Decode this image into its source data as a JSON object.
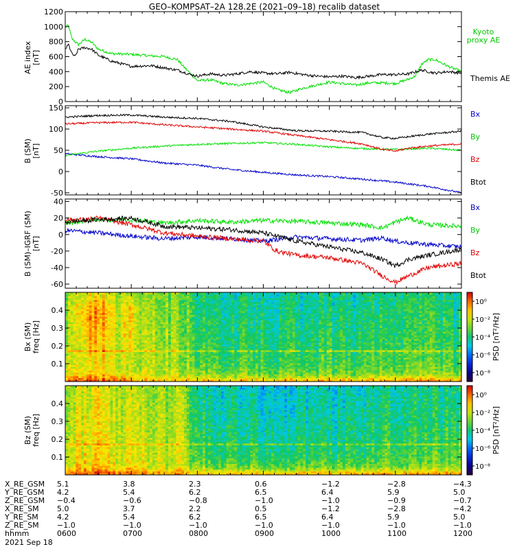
{
  "title": "GEO–KOMPSAT–2A 128.2E (2021–09–18) recalib dataset",
  "date_label": "2021 Sep 18",
  "colors": {
    "black": "#000000",
    "green": "#00e000",
    "red": "#e00000",
    "blue": "#0000cc",
    "legend_green": "#00c800"
  },
  "chart_data": [
    {
      "type": "line",
      "panel": "ae",
      "ylabel": "AE index [nT]",
      "ylim": [
        0,
        1200
      ],
      "yticks": [
        0,
        200,
        400,
        600,
        800,
        1000,
        1200
      ],
      "x_range": [
        6.0,
        12.0
      ],
      "series": [
        {
          "name": "Kyoto proxy AE",
          "color": "#00e000",
          "x": [
            6.0,
            6.05,
            6.1,
            6.2,
            6.3,
            6.4,
            6.5,
            6.7,
            7.0,
            7.3,
            7.5,
            7.7,
            7.8,
            7.9,
            8.0,
            8.2,
            8.4,
            8.6,
            8.8,
            9.0,
            9.2,
            9.4,
            9.6,
            9.8,
            10.0,
            10.2,
            10.4,
            10.6,
            10.8,
            11.0,
            11.1,
            11.2,
            11.3,
            11.4,
            11.5,
            11.6,
            11.8,
            12.0
          ],
          "values": [
            1000,
            1010,
            840,
            760,
            830,
            790,
            700,
            640,
            630,
            610,
            600,
            560,
            460,
            370,
            280,
            290,
            240,
            220,
            240,
            260,
            160,
            120,
            180,
            220,
            260,
            240,
            220,
            250,
            250,
            240,
            270,
            300,
            340,
            500,
            560,
            560,
            470,
            400
          ]
        },
        {
          "name": "Themis AE",
          "color": "#000000",
          "x": [
            6.0,
            6.05,
            6.1,
            6.15,
            6.2,
            6.3,
            6.4,
            6.5,
            6.7,
            7.0,
            7.3,
            7.5,
            7.7,
            7.9,
            8.0,
            8.2,
            8.4,
            8.6,
            8.8,
            9.0,
            9.2,
            9.4,
            9.6,
            9.8,
            10.0,
            10.2,
            10.4,
            10.6,
            10.8,
            11.0,
            11.2,
            11.4,
            11.6,
            11.8,
            12.0
          ],
          "values": [
            700,
            760,
            640,
            600,
            700,
            720,
            700,
            620,
            540,
            470,
            480,
            450,
            420,
            360,
            340,
            370,
            350,
            370,
            400,
            380,
            370,
            390,
            360,
            340,
            330,
            340,
            320,
            340,
            360,
            360,
            370,
            420,
            380,
            400,
            380
          ]
        }
      ]
    },
    {
      "type": "line",
      "panel": "b_sm",
      "ylabel": "B (SM) [nT]",
      "ylim": [
        -55,
        155
      ],
      "yticks": [
        -50,
        0,
        50,
        100,
        150
      ],
      "x_range": [
        6.0,
        12.0
      ],
      "series": [
        {
          "name": "Bx",
          "color": "#0000cc",
          "x": [
            6.0,
            6.5,
            7.0,
            7.5,
            8.0,
            8.5,
            9.0,
            9.5,
            10.0,
            10.5,
            11.0,
            11.5,
            12.0
          ],
          "values": [
            42,
            35,
            30,
            20,
            15,
            5,
            -2,
            -8,
            -12,
            -18,
            -25,
            -35,
            -50
          ]
        },
        {
          "name": "By",
          "color": "#00e000",
          "x": [
            6.0,
            6.5,
            7.0,
            7.5,
            8.0,
            8.5,
            9.0,
            9.5,
            10.0,
            10.5,
            11.0,
            11.5,
            12.0
          ],
          "values": [
            38,
            48,
            55,
            60,
            64,
            66,
            68,
            64,
            58,
            54,
            52,
            55,
            50
          ]
        },
        {
          "name": "Bz",
          "color": "#e00000",
          "x": [
            6.0,
            6.5,
            7.0,
            7.5,
            8.0,
            8.5,
            9.0,
            9.5,
            10.0,
            10.5,
            10.8,
            11.0,
            11.2,
            11.5,
            12.0
          ],
          "values": [
            112,
            115,
            116,
            110,
            105,
            100,
            95,
            85,
            75,
            65,
            52,
            48,
            55,
            60,
            65
          ]
        },
        {
          "name": "Btot",
          "color": "#000000",
          "x": [
            6.0,
            6.5,
            7.0,
            7.5,
            8.0,
            8.5,
            9.0,
            9.5,
            10.0,
            10.5,
            10.8,
            11.0,
            11.2,
            11.5,
            12.0
          ],
          "values": [
            128,
            132,
            133,
            128,
            125,
            118,
            105,
            96,
            95,
            92,
            80,
            78,
            82,
            88,
            95
          ]
        }
      ]
    },
    {
      "type": "line",
      "panel": "b_minus_igrf",
      "ylabel": "B (SM)–IGRF (SM) [nT]",
      "ylim": [
        -65,
        43
      ],
      "yticks": [
        -60,
        -40,
        -20,
        0,
        20,
        40
      ],
      "x_range": [
        6.0,
        12.0
      ],
      "series": [
        {
          "name": "Bx",
          "color": "#0000cc",
          "x": [
            6.0,
            6.5,
            7.0,
            7.5,
            8.0,
            8.5,
            9.0,
            9.5,
            10.0,
            10.5,
            10.8,
            11.0,
            11.2,
            11.5,
            12.0
          ],
          "values": [
            5,
            2,
            -2,
            -5,
            -3,
            -5,
            -8,
            -3,
            -5,
            -7,
            -4,
            -8,
            -10,
            -12,
            -15
          ]
        },
        {
          "name": "By",
          "color": "#00e000",
          "x": [
            6.0,
            6.5,
            7.0,
            7.5,
            8.0,
            8.5,
            9.0,
            9.5,
            10.0,
            10.5,
            10.8,
            11.0,
            11.2,
            11.5,
            12.0
          ],
          "values": [
            14,
            18,
            18,
            14,
            17,
            15,
            17,
            16,
            14,
            12,
            8,
            15,
            20,
            12,
            10
          ]
        },
        {
          "name": "Bz",
          "color": "#e00000",
          "x": [
            6.0,
            6.3,
            6.5,
            7.0,
            7.5,
            8.0,
            8.5,
            9.0,
            9.2,
            9.5,
            10.0,
            10.5,
            10.8,
            11.0,
            11.2,
            11.5,
            12.0
          ],
          "values": [
            18,
            18,
            20,
            12,
            2,
            -2,
            -5,
            -8,
            -20,
            -25,
            -28,
            -35,
            -50,
            -58,
            -50,
            -40,
            -35
          ]
        },
        {
          "name": "Btot",
          "color": "#000000",
          "x": [
            6.0,
            6.5,
            7.0,
            7.5,
            8.0,
            8.5,
            9.0,
            9.5,
            10.0,
            10.5,
            10.8,
            11.0,
            11.2,
            11.5,
            12.0
          ],
          "values": [
            15,
            18,
            20,
            10,
            8,
            6,
            2,
            -8,
            -15,
            -22,
            -30,
            -38,
            -30,
            -25,
            -18
          ]
        }
      ]
    },
    {
      "type": "heatmap",
      "panel": "bx_spectrogram",
      "ylabel": "Bx (SM) freq [Hz]",
      "ylim": [
        0.0,
        0.5
      ],
      "yticks": [
        0.1,
        0.2,
        0.3,
        0.4
      ],
      "colorbar_label": "PSD [nT²/Hz]",
      "colorbar_range_log10": [
        -9,
        1
      ],
      "colorbar_ticks_log10": [
        0,
        -2,
        -4,
        -6,
        -8
      ],
      "colorbar_ticks": [
        "10⁰",
        "10⁻²",
        "10⁻⁴",
        "10⁻⁶",
        "10⁻⁸"
      ],
      "times": [
        6.0,
        6.2,
        6.4,
        6.6,
        6.8,
        7.0,
        7.2,
        7.4,
        7.6,
        7.8,
        8.0,
        8.5,
        9.0,
        9.5,
        10.0,
        10.5,
        11.0,
        11.5,
        12.0
      ],
      "freqs": [
        0.01,
        0.03,
        0.05,
        0.1,
        0.15,
        0.2,
        0.3,
        0.4,
        0.49
      ],
      "log10_psd": [
        [
          0.0,
          0.2,
          0.2,
          0.0,
          0.0,
          -0.5,
          -1.0,
          -1.0,
          -1.0,
          -1.0,
          -1.0,
          -1.0,
          -1.0,
          -1.0,
          -1.0,
          -1.0,
          -0.5,
          -0.8,
          -1.0
        ],
        [
          -1.0,
          -0.8,
          -0.5,
          -0.8,
          -1.0,
          -1.2,
          -1.5,
          -1.8,
          -2.0,
          -2.0,
          -2.2,
          -2.5,
          -2.5,
          -2.5,
          -2.5,
          -2.5,
          -2.0,
          -2.2,
          -2.5
        ],
        [
          -1.8,
          -1.5,
          -1.0,
          -1.2,
          -1.5,
          -1.8,
          -2.0,
          -2.2,
          -2.2,
          -2.3,
          -2.6,
          -3.0,
          -3.0,
          -3.0,
          -3.0,
          -3.0,
          -2.5,
          -2.8,
          -3.0
        ],
        [
          -2.0,
          -1.8,
          -1.2,
          -1.5,
          -1.8,
          -2.0,
          -2.2,
          -2.4,
          -2.5,
          -2.6,
          -3.2,
          -3.5,
          -3.5,
          -3.5,
          -3.5,
          -3.5,
          -3.0,
          -3.2,
          -3.5
        ],
        [
          -2.2,
          -1.8,
          -1.0,
          -1.5,
          -1.8,
          -2.0,
          -2.2,
          -2.4,
          -2.5,
          -2.6,
          -3.3,
          -3.6,
          -3.6,
          -3.6,
          -3.6,
          -3.6,
          -3.1,
          -3.3,
          -3.6
        ],
        [
          -2.4,
          -1.8,
          -0.8,
          -1.3,
          -1.8,
          -1.5,
          -2.3,
          -2.5,
          -2.6,
          -2.7,
          -3.5,
          -3.8,
          -3.8,
          -3.8,
          -3.8,
          -3.8,
          -3.3,
          -3.5,
          -3.8
        ],
        [
          -2.5,
          -1.5,
          -0.5,
          -1.0,
          -2.0,
          -1.2,
          -2.4,
          -2.6,
          -2.7,
          -2.8,
          -3.6,
          -4.0,
          -4.0,
          -4.0,
          -4.0,
          -4.0,
          -3.5,
          -3.7,
          -4.0
        ],
        [
          -2.6,
          -1.2,
          -0.3,
          -0.6,
          -2.0,
          -1.0,
          -2.5,
          -2.7,
          -2.8,
          -2.9,
          -3.8,
          -4.2,
          -4.2,
          -4.2,
          -4.2,
          -4.2,
          -3.6,
          -3.8,
          -4.2
        ],
        [
          -2.7,
          -2.0,
          -1.5,
          -1.8,
          -2.2,
          -2.2,
          -2.6,
          -2.8,
          -2.9,
          -3.0,
          -4.0,
          -4.4,
          -4.4,
          -4.4,
          -4.4,
          -4.4,
          -3.8,
          -4.0,
          -4.4
        ]
      ],
      "spectral_line_hz": 0.17
    },
    {
      "type": "heatmap",
      "panel": "bz_spectrogram",
      "ylabel": "Bz (SM) freq [Hz]",
      "ylim": [
        0.0,
        0.5
      ],
      "yticks": [
        0.1,
        0.2,
        0.3,
        0.4
      ],
      "colorbar_label": "PSD [nT²/Hz]",
      "colorbar_range_log10": [
        -9,
        1
      ],
      "colorbar_ticks_log10": [
        0,
        -2,
        -4,
        -6,
        -8
      ],
      "colorbar_ticks": [
        "10⁰",
        "10⁻²",
        "10⁻⁴",
        "10⁻⁶",
        "10⁻⁸"
      ],
      "times": [
        6.0,
        6.2,
        6.4,
        6.6,
        6.8,
        7.0,
        7.2,
        7.4,
        7.6,
        7.8,
        8.0,
        8.5,
        9.0,
        9.5,
        10.0,
        10.5,
        11.0,
        11.5,
        12.0
      ],
      "freqs": [
        0.01,
        0.03,
        0.05,
        0.1,
        0.15,
        0.2,
        0.3,
        0.4,
        0.49
      ],
      "log10_psd": [
        [
          0.0,
          0.2,
          0.2,
          0.0,
          0.0,
          -0.3,
          -0.5,
          -0.8,
          -0.8,
          -0.8,
          -1.0,
          -1.0,
          -1.0,
          -1.0,
          -1.0,
          -1.0,
          -0.5,
          -0.8,
          -0.5
        ],
        [
          -1.0,
          -0.8,
          -0.6,
          -0.8,
          -1.0,
          -1.2,
          -1.4,
          -1.6,
          -1.6,
          -1.7,
          -2.2,
          -2.5,
          -2.5,
          -2.5,
          -2.5,
          -2.5,
          -2.0,
          -2.2,
          -2.0
        ],
        [
          -1.6,
          -1.4,
          -1.2,
          -1.3,
          -1.5,
          -1.7,
          -1.9,
          -2.0,
          -2.0,
          -2.1,
          -2.8,
          -3.2,
          -3.2,
          -3.2,
          -3.2,
          -3.2,
          -2.6,
          -2.8,
          -2.6
        ],
        [
          -1.8,
          -1.6,
          -1.4,
          -1.5,
          -1.7,
          -1.9,
          -2.0,
          -2.1,
          -2.1,
          -2.2,
          -3.3,
          -3.8,
          -3.8,
          -3.8,
          -3.8,
          -3.8,
          -3.1,
          -3.3,
          -3.1
        ],
        [
          -1.9,
          -1.7,
          -1.5,
          -1.6,
          -1.8,
          -2.0,
          -2.1,
          -2.2,
          -2.2,
          -2.3,
          -3.5,
          -4.0,
          -4.0,
          -4.0,
          -4.0,
          -4.0,
          -3.3,
          -3.5,
          -3.3
        ],
        [
          -2.0,
          -1.7,
          -1.5,
          -1.6,
          -1.8,
          -2.0,
          -2.2,
          -2.3,
          -2.3,
          -2.4,
          -3.7,
          -4.2,
          -4.2,
          -4.2,
          -4.2,
          -4.2,
          -3.5,
          -3.7,
          -3.5
        ],
        [
          -2.1,
          -1.8,
          -1.6,
          -1.7,
          -1.9,
          -2.1,
          -2.3,
          -2.4,
          -2.4,
          -2.5,
          -3.9,
          -4.4,
          -4.4,
          -4.4,
          -4.4,
          -4.4,
          -3.7,
          -3.9,
          -3.7
        ],
        [
          -2.2,
          -1.9,
          -1.7,
          -1.8,
          -2.0,
          -2.2,
          -2.4,
          -2.5,
          -2.5,
          -2.6,
          -4.0,
          -4.6,
          -4.6,
          -4.6,
          -4.6,
          -4.6,
          -3.9,
          -4.1,
          -3.9
        ],
        [
          -2.3,
          -2.0,
          -1.8,
          -1.9,
          -2.1,
          -2.3,
          -2.5,
          -2.6,
          -2.6,
          -2.7,
          -4.2,
          -4.8,
          -4.8,
          -4.8,
          -4.8,
          -4.8,
          -4.0,
          -4.2,
          -4.0
        ]
      ],
      "spectral_line_hz": 0.17
    }
  ],
  "ephemeris": {
    "rows": [
      {
        "label": "X_RE_GSM",
        "values": [
          "5.1",
          "3.8",
          "2.3",
          "0.6",
          "−1.2",
          "−2.8",
          "−4.3"
        ]
      },
      {
        "label": "Y_RE_GSM",
        "values": [
          "4.2",
          "5.4",
          "6.2",
          "6.5",
          "6.4",
          "5.9",
          "5.0"
        ]
      },
      {
        "label": "Z_RE_GSM",
        "values": [
          "−0.4",
          "−0.6",
          "−0.8",
          "−1.0",
          "−1.0",
          "−0.9",
          "−0.7"
        ]
      },
      {
        "label": "X_RE_SM",
        "values": [
          "5.0",
          "3.7",
          "2.2",
          "0.5",
          "−1.2",
          "−2.8",
          "−4.2"
        ]
      },
      {
        "label": "Y_RE_SM",
        "values": [
          "4.2",
          "5.4",
          "6.2",
          "6.5",
          "6.4",
          "5.9",
          "5.0"
        ]
      },
      {
        "label": "Z_RE_SM",
        "values": [
          "−1.0",
          "−1.0",
          "−1.0",
          "−1.0",
          "−1.0",
          "−1.0",
          "−1.0"
        ]
      },
      {
        "label": "hhmm",
        "values": [
          "0600",
          "0700",
          "0800",
          "0900",
          "1000",
          "1100",
          "1200"
        ]
      }
    ]
  }
}
